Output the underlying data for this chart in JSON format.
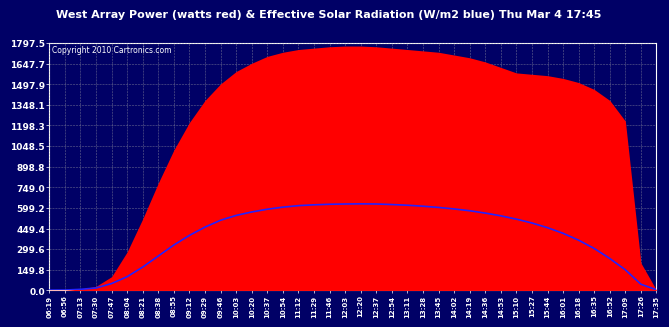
{
  "title": "West Array Power (watts red) & Effective Solar Radiation (W/m2 blue) Thu Mar 4 17:45",
  "copyright": "Copyright 2010 Cartronics.com",
  "bg_color": "#000066",
  "plot_bg_color": "#000066",
  "red_fill_color": "#ff0000",
  "blue_line_color": "#2222ff",
  "grid_color": "#aaaaaa",
  "text_color": "#ffffff",
  "ymin": 0.0,
  "ymax": 1797.5,
  "yticks": [
    0.0,
    149.8,
    299.6,
    449.4,
    599.2,
    749.0,
    898.8,
    1048.5,
    1198.3,
    1348.1,
    1497.9,
    1647.7,
    1797.5
  ],
  "xtick_labels": [
    "06:19",
    "06:56",
    "07:13",
    "07:30",
    "07:47",
    "08:04",
    "08:21",
    "08:38",
    "08:55",
    "09:12",
    "09:29",
    "09:46",
    "10:03",
    "10:20",
    "10:37",
    "10:54",
    "11:12",
    "11:29",
    "11:46",
    "12:03",
    "12:20",
    "12:37",
    "12:54",
    "13:11",
    "13:28",
    "13:45",
    "14:02",
    "14:19",
    "14:36",
    "14:53",
    "15:10",
    "15:27",
    "15:44",
    "16:01",
    "16:18",
    "16:35",
    "16:52",
    "17:09",
    "17:26",
    "17:35"
  ],
  "power_data": [
    2,
    2,
    10,
    30,
    100,
    280,
    520,
    780,
    1020,
    1220,
    1380,
    1500,
    1590,
    1650,
    1700,
    1730,
    1750,
    1760,
    1770,
    1775,
    1775,
    1770,
    1760,
    1750,
    1740,
    1730,
    1710,
    1690,
    1660,
    1620,
    1580,
    1570,
    1560,
    1540,
    1510,
    1460,
    1380,
    1230,
    200,
    2
  ],
  "solar_data": [
    2,
    3,
    8,
    18,
    50,
    100,
    170,
    250,
    330,
    400,
    460,
    510,
    545,
    570,
    590,
    605,
    616,
    622,
    626,
    628,
    629,
    628,
    624,
    619,
    612,
    603,
    592,
    579,
    562,
    542,
    518,
    490,
    456,
    415,
    365,
    305,
    232,
    150,
    45,
    5
  ]
}
